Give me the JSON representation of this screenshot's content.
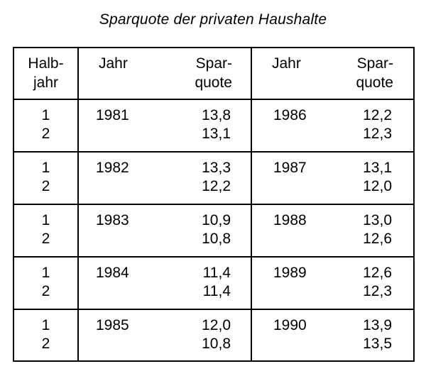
{
  "title": "Sparquote der privaten Haushalte",
  "headers": {
    "halbjahr_l1": "Halb-",
    "halbjahr_l2": "jahr",
    "jahr_a": "Jahr",
    "sparquote_a_l1": "Spar-",
    "sparquote_a_l2": "quote",
    "jahr_b": "Jahr",
    "sparquote_b_l1": "Spar-",
    "sparquote_b_l2": "quote"
  },
  "rows": [
    {
      "h1": "1",
      "h2": "2",
      "year_a": "1981",
      "a1": "13,8",
      "a2": "13,1",
      "year_b": "1986",
      "b1": "12,2",
      "b2": "12,3"
    },
    {
      "h1": "1",
      "h2": "2",
      "year_a": "1982",
      "a1": "13,3",
      "a2": "12,2",
      "year_b": "1987",
      "b1": "13,1",
      "b2": "12,0"
    },
    {
      "h1": "1",
      "h2": "2",
      "year_a": "1983",
      "a1": "10,9",
      "a2": "10,8",
      "year_b": "1988",
      "b1": "13,0",
      "b2": "12,6"
    },
    {
      "h1": "1",
      "h2": "2",
      "year_a": "1984",
      "a1": "11,4",
      "a2": "11,4",
      "year_b": "1989",
      "b1": "12,6",
      "b2": "12,3"
    },
    {
      "h1": "1",
      "h2": "2",
      "year_a": "1985",
      "a1": "12,0",
      "a2": "10,8",
      "year_b": "1990",
      "b1": "13,9",
      "b2": "13,5"
    }
  ]
}
